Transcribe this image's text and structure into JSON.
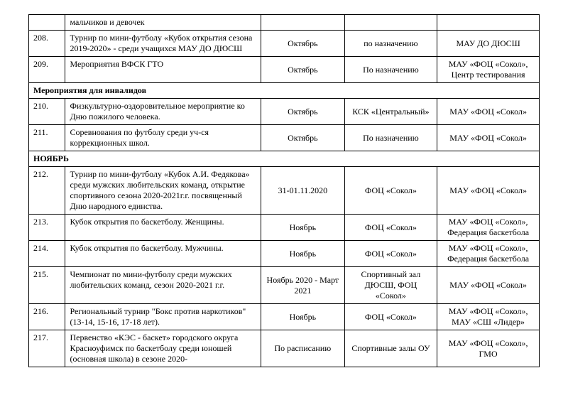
{
  "colors": {
    "border": "#000000",
    "text": "#000000",
    "background": "#ffffff"
  },
  "typography": {
    "family": "Times New Roman",
    "size_pt": 12,
    "header_weight": "bold"
  },
  "columns": {
    "num_pct": 6,
    "event_pct": 40,
    "date_pct": 16,
    "place_pct": 18,
    "org_pct": 20
  },
  "rows": [
    {
      "type": "row",
      "num": "",
      "event": "мальчиков и девочек",
      "date": "",
      "place": "",
      "org": ""
    },
    {
      "type": "row",
      "num": "208.",
      "event": "Турнир по мини-футболу «Кубок открытия сезона 2019-2020» - среди учащихся МАУ ДО ДЮСШ",
      "date": "Октябрь",
      "place": "по назначению",
      "org": "МАУ ДО ДЮСШ"
    },
    {
      "type": "row",
      "num": "209.",
      "event": "Мероприятия ВФСК ГТО",
      "date": "Октябрь",
      "place": "По назначению",
      "org": "МАУ «ФОЦ «Сокол», Центр тестирования"
    },
    {
      "type": "section",
      "label": "Мероприятия для инвалидов"
    },
    {
      "type": "row",
      "num": "210.",
      "event": "Физкультурно-оздоровительное мероприятие ко Дню пожилого человека.",
      "date": "Октябрь",
      "place": "КСК «Центральный»",
      "org": "МАУ «ФОЦ «Сокол»"
    },
    {
      "type": "row",
      "num": "211.",
      "event": "Соревнования по футболу среди уч-ся коррекционных школ.",
      "date": "Октябрь",
      "place": "По назначению",
      "org": "МАУ «ФОЦ «Сокол»"
    },
    {
      "type": "section",
      "label": "НОЯБРЬ"
    },
    {
      "type": "row",
      "num": "212.",
      "event": "Турнир по мини-футболу «Кубок А.И. Федякова» среди мужских любительских команд, открытие спортивного сезона 2020-2021г.г. посвященный Дню народного единства.",
      "date": "31-01.11.2020",
      "place": "ФОЦ «Сокол»",
      "org": "МАУ «ФОЦ «Сокол»"
    },
    {
      "type": "row",
      "num": "213.",
      "event": "Кубок открытия по баскетболу. Женщины.",
      "date": "Ноябрь",
      "place": "ФОЦ «Сокол»",
      "org": "МАУ «ФОЦ «Сокол», Федерация баскетбола"
    },
    {
      "type": "row",
      "num": "214.",
      "event": "Кубок открытия по баскетболу. Мужчины.",
      "date": "Ноябрь",
      "place": "ФОЦ «Сокол»",
      "org": "МАУ «ФОЦ «Сокол», Федерация баскетбола"
    },
    {
      "type": "row",
      "num": "215.",
      "event": "Чемпионат по мини-футболу среди мужских любительских команд, сезон 2020-2021 г.г.",
      "date": "Ноябрь 2020 - Март 2021",
      "place": "Спортивный зал ДЮСШ, ФОЦ «Сокол»",
      "org": "МАУ «ФОЦ «Сокол»"
    },
    {
      "type": "row",
      "num": "216.",
      "event": "Региональный турнир \"Бокс против наркотиков\" (13-14, 15-16, 17-18 лет).",
      "date": "Ноябрь",
      "place": "ФОЦ «Сокол»",
      "org": "МАУ «ФОЦ «Сокол», МАУ «СШ «Лидер»"
    },
    {
      "type": "row",
      "num": "217.",
      "event": "Первенство «КЭС - баскет» городского округа Красноуфимск по баскетболу среди юношей (основная школа) в сезоне 2020-",
      "date": "По расписанию",
      "place": "Спортивные залы ОУ",
      "org": "МАУ «ФОЦ «Сокол», ГМО"
    }
  ]
}
